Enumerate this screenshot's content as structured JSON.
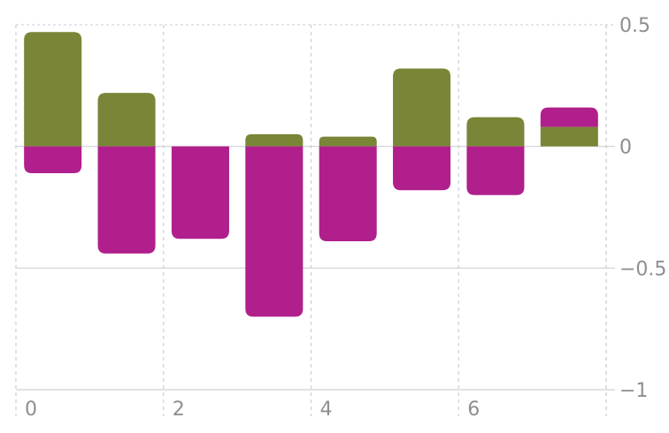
{
  "chart_data": {
    "type": "bar",
    "stacked": true,
    "x": [
      0,
      1,
      2,
      3,
      4,
      5,
      6,
      7
    ],
    "x_ticks": [
      0,
      2,
      4,
      6
    ],
    "y_ticks": [
      0.5,
      0,
      -0.5,
      -1
    ],
    "ylim": [
      -1,
      0.5
    ],
    "y_axis_side": "right",
    "series": [
      {
        "color": "#7a8537",
        "values": [
          0.47,
          0.22,
          0.0,
          0.05,
          0.04,
          0.32,
          0.12,
          0.08
        ]
      },
      {
        "color": "#b01f8c",
        "values": [
          -0.11,
          -0.44,
          -0.38,
          -0.7,
          -0.39,
          -0.18,
          -0.2,
          0.08
        ]
      }
    ],
    "grid": true,
    "title": "",
    "xlabel": "",
    "ylabel": ""
  }
}
